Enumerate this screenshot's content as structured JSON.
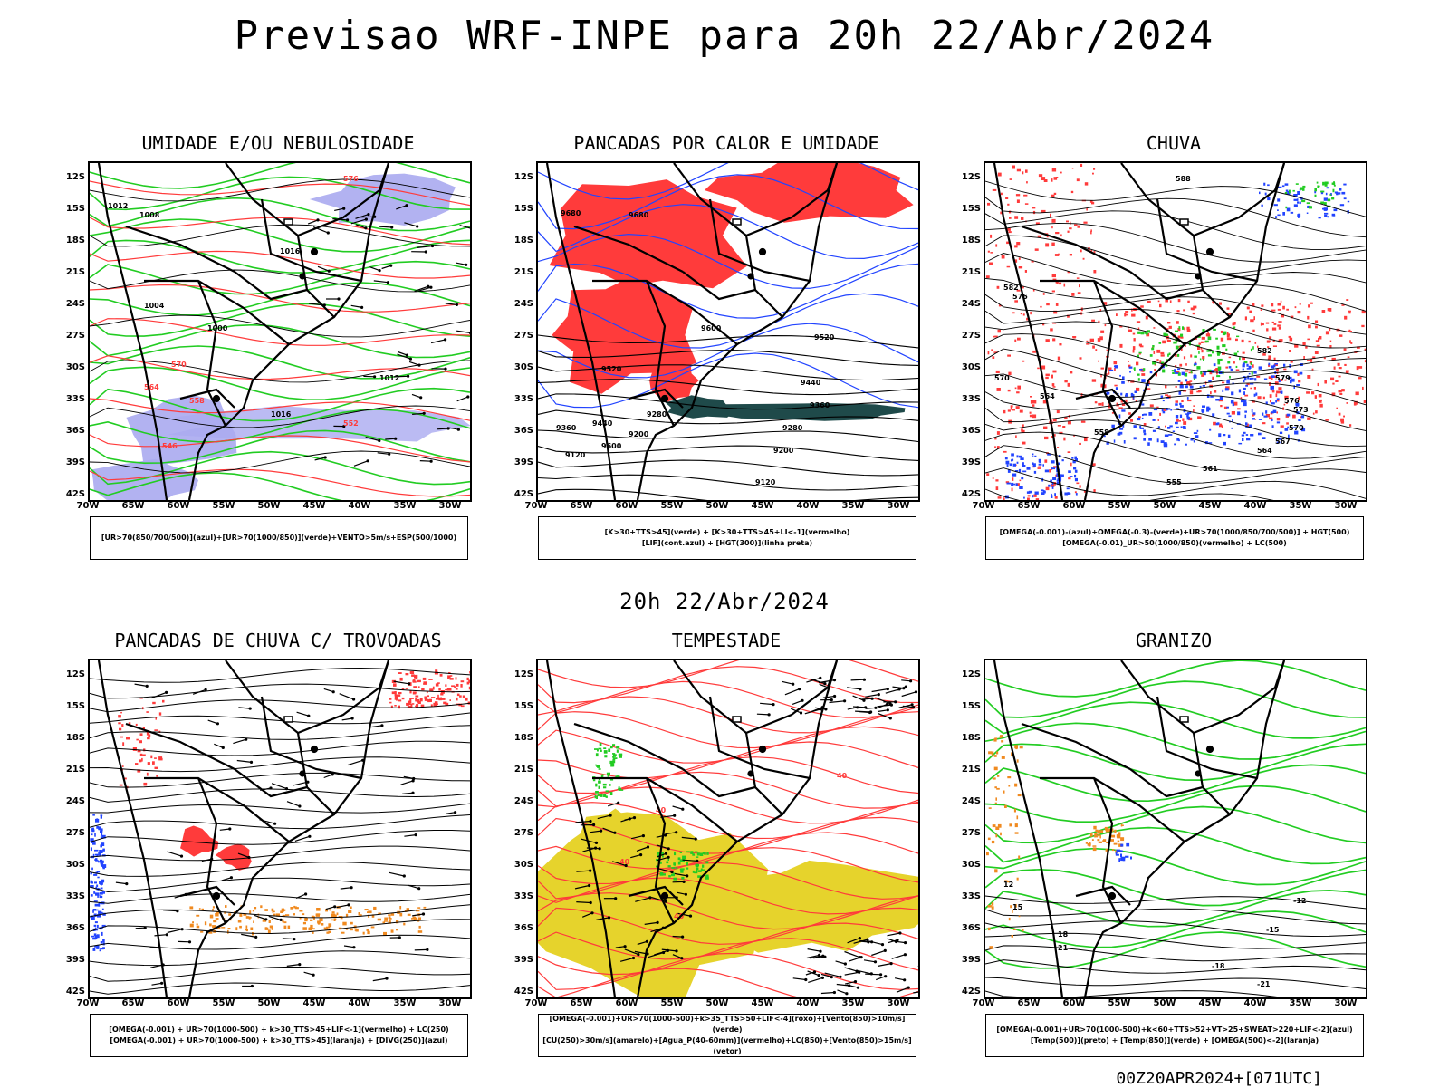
{
  "header": {
    "title": "Previsao WRF-INPE  para 20h 22/Abr/2024",
    "mid_title": "20h 22/Abr/2024",
    "footer": "00Z20APR2024+[071UTC]"
  },
  "axes": {
    "lat_labels": [
      "12S",
      "15S",
      "18S",
      "21S",
      "24S",
      "27S",
      "30S",
      "33S",
      "36S",
      "39S",
      "42S"
    ],
    "lon_labels": [
      "70W",
      "65W",
      "60W",
      "55W",
      "50W",
      "45W",
      "40W",
      "35W",
      "30W"
    ]
  },
  "colors": {
    "green": "#22cc22",
    "red": "#ff3b3b",
    "blue": "#2244ff",
    "lavender": "#aaaaf0",
    "darkteal": "#1f4a4a",
    "yellow": "#e6d32c",
    "orange": "#f08a20"
  },
  "panels": [
    {
      "title": "UMIDADE E/OU NEBULOSIDADE",
      "legend": [
        "[UR>70(850/700/500)](azul)+[UR>70(1000/850)](verde)+VENTO>5m/s+ESP(500/1000)"
      ]
    },
    {
      "title": "PANCADAS POR CALOR E UMIDADE",
      "legend": [
        "[K>30+TTS>45](verde)  +  [K>30+TTS>45+LI<-1](vermelho)",
        "[LIF](cont.azul)  +  [HGT(300)](linha preta)"
      ]
    },
    {
      "title": "CHUVA",
      "legend": [
        "[OMEGA(-0.001)-(azul)+OMEGA(-0.3)-(verde)+UR>70(1000/850/700/500)]  +  HGT(500)",
        "[OMEGA(-0.01)_UR>50(1000/850)(vermelho)  +  LC(500)"
      ]
    },
    {
      "title": "PANCADAS DE CHUVA C/ TROVOADAS",
      "legend": [
        "[OMEGA(-0.001)  +  UR>70(1000-500)  +  k>30_TTS>45+LIF<-1](vermelho)  +  LC(250)",
        "[OMEGA(-0.001)  +  UR>70(1000-500)  +  k>30_TTS>45](laranja)  +  [DIVG(250)](azul)"
      ]
    },
    {
      "title": "TEMPESTADE",
      "legend": [
        "[OMEGA(-0.001)+UR>70(1000-500)+k>35_TTS>50+LIF<-4](roxo)+[Vento(850)>10m/s](verde)",
        "[CU(250)>30m/s](amarelo)+[Agua_P(40-60mm)](vermelho)+LC(850)+[Vento(850)>15m/s](vetor)"
      ]
    },
    {
      "title": "GRANIZO",
      "legend": [
        "[OMEGA(-0.001)+UR>70(1000-500)+k<60+TTS>52+VT>25+SWEAT>220+LIF<-2](azul)",
        "[Temp(500)](preto)  +  [Temp(850)](verde)  +  [OMEGA(500)<-2](laranja)"
      ]
    }
  ],
  "contour_labels": {
    "p1": [
      "1012",
      "1008",
      "1016",
      "1004",
      "1000",
      "576",
      "570",
      "564",
      "558",
      "552",
      "546",
      "1016",
      "1012"
    ],
    "p2": [
      "9680",
      "9680",
      "9600",
      "9520",
      "9440",
      "9360",
      "9280",
      "9200",
      "9120",
      "9600",
      "9520",
      "9440",
      "9360",
      "9280",
      "9200",
      "9120"
    ],
    "p3": [
      "588",
      "582",
      "576",
      "570",
      "564",
      "558",
      "582",
      "579",
      "576",
      "573",
      "570",
      "567",
      "564",
      "561",
      "555"
    ],
    "p5": [
      "40",
      "40",
      "40",
      "40"
    ],
    "p6": [
      "12",
      "15",
      "18",
      "21",
      "-12",
      "-15",
      "-18",
      "-21"
    ]
  }
}
